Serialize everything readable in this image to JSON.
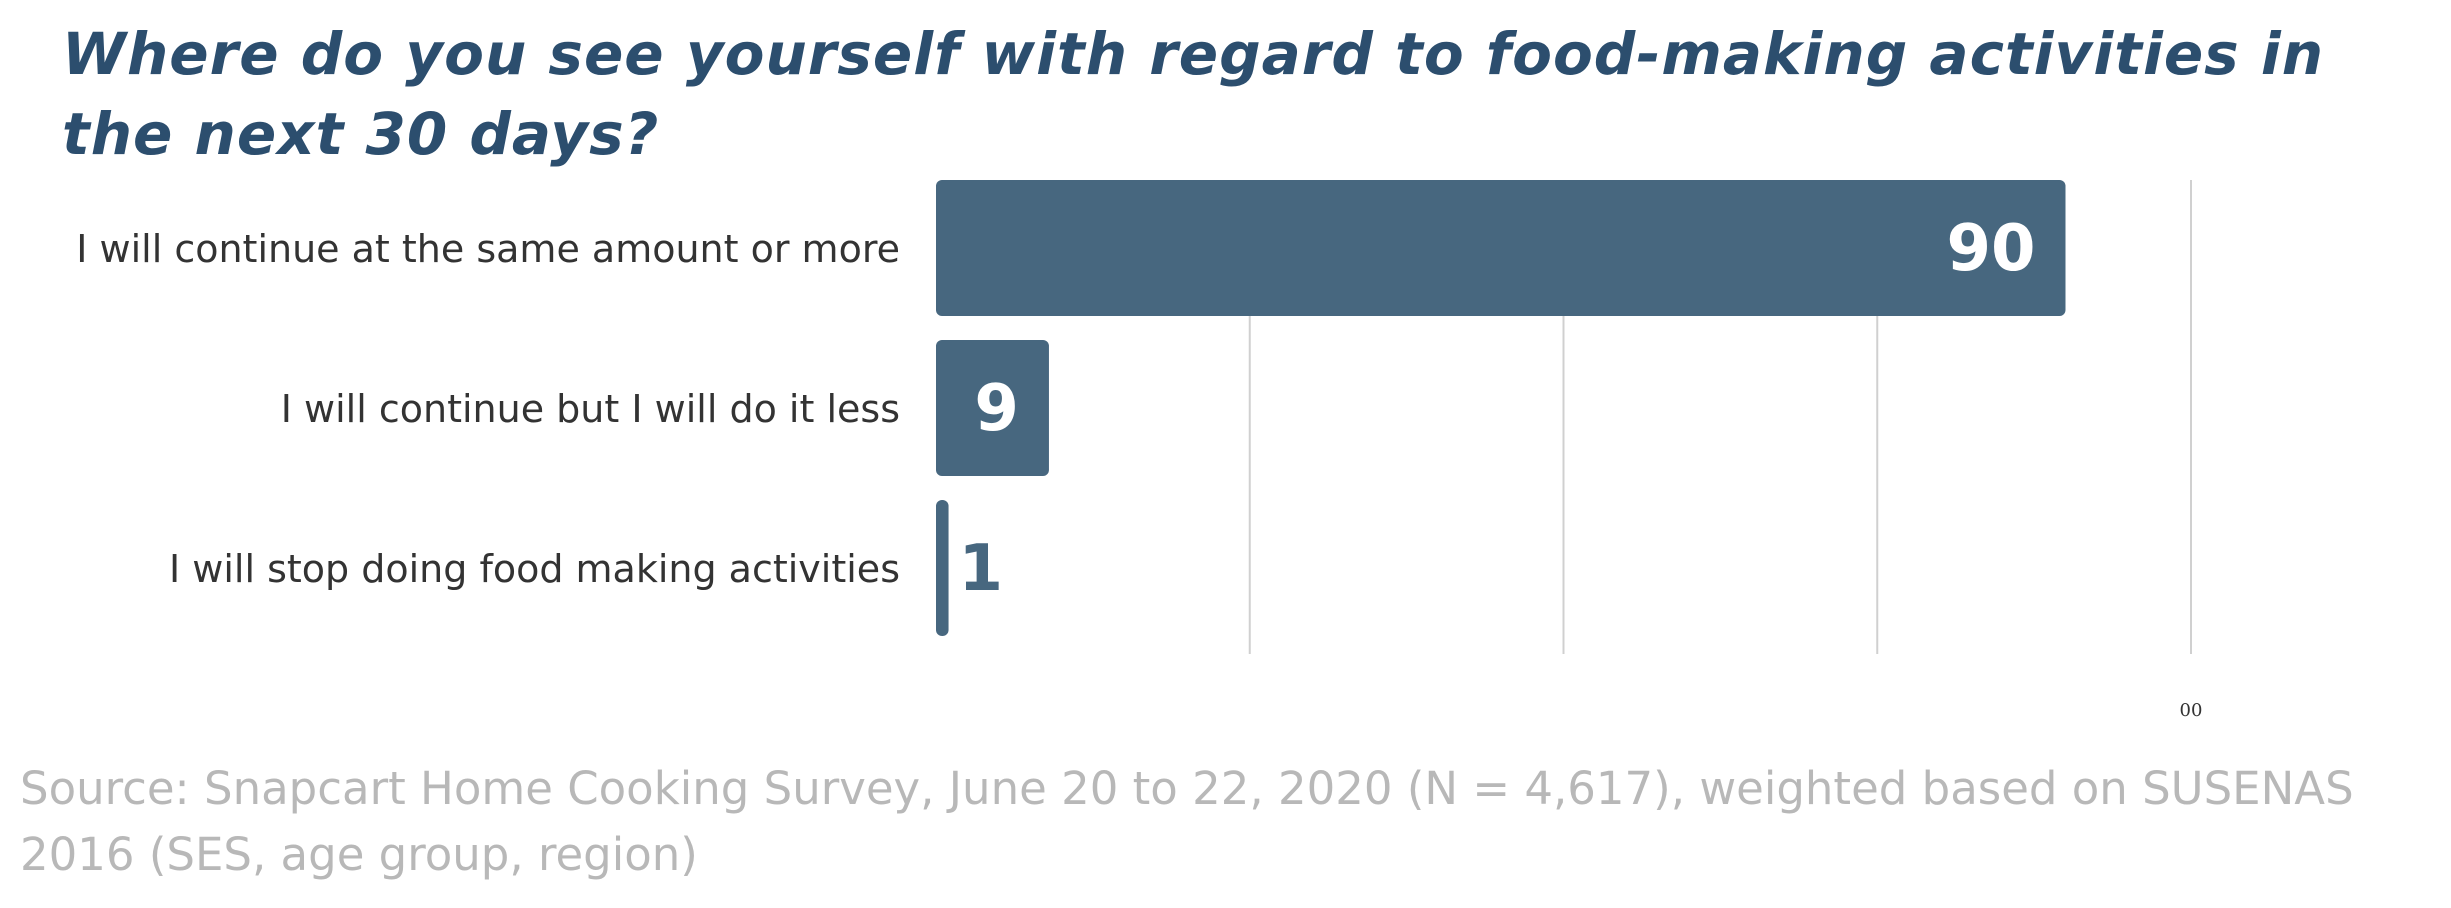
{
  "chart_data": {
    "type": "bar",
    "orientation": "horizontal",
    "title": "Where do you see yourself with regard to food-making activities in the next 30 days?",
    "xlabel": "",
    "ylabel": "",
    "categories": [
      "I will continue at the same amount or more",
      "I will continue but I will do it less",
      "I will stop doing food making activities"
    ],
    "values": [
      90,
      9,
      1
    ],
    "data_labels": [
      "90",
      "9",
      "1"
    ],
    "xlim": [
      0,
      100
    ],
    "gridlines": [
      25,
      50,
      75,
      100
    ],
    "tick_labels": [
      {
        "value": 100,
        "label": "00"
      }
    ],
    "grid": true,
    "legend": "none",
    "colors": {
      "bar": "#47677f",
      "grid": "#d0d0d0",
      "label_inside": "#ffffff",
      "label_outside": "#47677f",
      "category_text": "#333333"
    }
  },
  "source": "Source: Snapcart Home Cooking Survey, June 20 to 22, 2020 (N = 4,617), weighted based  on SUSENAS 2016 (SES, age group, region)"
}
